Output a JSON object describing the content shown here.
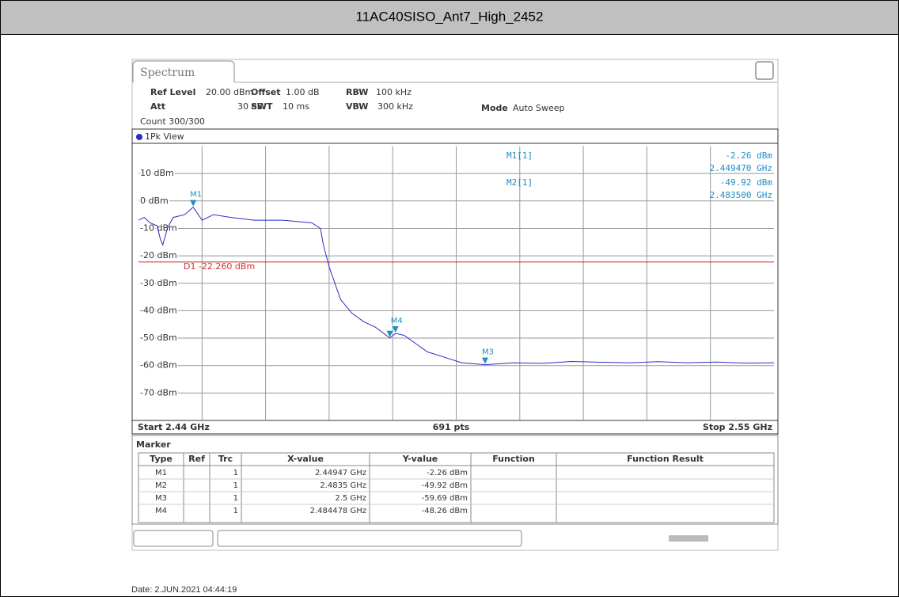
{
  "header": {
    "title": "11AC40SISO_Ant7_High_2452"
  },
  "tab": "Spectrum",
  "settings": [
    {
      "name": "Ref Level",
      "value": "20.00 dBm"
    },
    {
      "name": "Offset",
      "value": "1.00 dB"
    },
    {
      "name": "RBW",
      "value": "100 kHz"
    },
    {
      "name": "Att",
      "value": "30 dB"
    },
    {
      "name": "SWT",
      "value": "10 ms"
    },
    {
      "name": "VBW",
      "value": "300 kHz"
    },
    {
      "name": "Mode",
      "value": "Auto Sweep"
    }
  ],
  "count": "Count 300/300",
  "view": "1Pk View",
  "chart_data": {
    "type": "line",
    "xlim": [
      2.44,
      2.55
    ],
    "ylim": [
      -80,
      20
    ],
    "yticks": [
      {
        "value": 10,
        "label": "10 dBm"
      },
      {
        "value": 0,
        "label": "0 dBm"
      },
      {
        "value": -10,
        "label": "-10 dBm"
      },
      {
        "value": -20,
        "label": "-20 dBm"
      },
      {
        "value": -30,
        "label": "-30 dBm"
      },
      {
        "value": -40,
        "label": "-40 dBm"
      },
      {
        "value": -50,
        "label": "-50 dBm"
      },
      {
        "value": -60,
        "label": "-60 dBm"
      },
      {
        "value": -70,
        "label": "-70 dBm"
      }
    ],
    "grid": true,
    "series": [
      {
        "name": "1Pk",
        "color": "#2b2bc8",
        "x": [
          2.44,
          2.441,
          2.442,
          2.4432,
          2.4438,
          2.4442,
          2.445,
          2.446,
          2.448,
          2.44947,
          2.451,
          2.453,
          2.456,
          2.46,
          2.465,
          2.47,
          2.4715,
          2.472,
          2.473,
          2.474,
          2.475,
          2.477,
          2.479,
          2.481,
          2.4835,
          2.4845,
          2.486,
          2.488,
          2.49,
          2.493,
          2.496,
          2.5,
          2.505,
          2.51,
          2.515,
          2.52,
          2.525,
          2.53,
          2.535,
          2.54,
          2.545,
          2.55
        ],
        "values": [
          -7,
          -6,
          -8,
          -9,
          -14,
          -16,
          -10,
          -6,
          -5,
          -2.26,
          -7,
          -5,
          -6,
          -7,
          -7,
          -8,
          -10,
          -16,
          -24,
          -30,
          -36,
          -41,
          -44,
          -46,
          -49.92,
          -48.26,
          -49,
          -52,
          -55,
          -57,
          -59,
          -59.69,
          -59,
          -59.2,
          -58.5,
          -58.8,
          -59,
          -58.6,
          -59,
          -58.7,
          -59.1,
          -59
        ]
      }
    ],
    "display_line": {
      "label": "D1 -22.260 dBm",
      "value": -22.26,
      "color": "#d03030"
    },
    "markers": [
      {
        "label": "M1",
        "x": 2.44947,
        "y": -2.26
      },
      {
        "label": "M2",
        "x": 2.4835,
        "y": -49.92
      },
      {
        "label": "M3",
        "x": 2.5,
        "y": -59.69
      },
      {
        "label": "M4",
        "x": 2.484478,
        "y": -48.26
      }
    ],
    "readout": [
      {
        "name": "M1[1]",
        "y": "-2.26 dBm",
        "x": "2.449470 GHz"
      },
      {
        "name": "M2[1]",
        "y": "-49.92 dBm",
        "x": "2.483500 GHz"
      }
    ],
    "start": "Start 2.44 GHz",
    "points": "691 pts",
    "stop": "Stop 2.55 GHz"
  },
  "table": {
    "title": "Marker",
    "columns": [
      "Type",
      "Ref",
      "Trc",
      "X-value",
      "Y-value",
      "Function",
      "Function Result"
    ],
    "rows": [
      [
        "M1",
        "",
        "1",
        "2.44947 GHz",
        "-2.26 dBm",
        "",
        ""
      ],
      [
        "M2",
        "",
        "1",
        "2.4835 GHz",
        "-49.92 dBm",
        "",
        ""
      ],
      [
        "M3",
        "",
        "1",
        "2.5 GHz",
        "-59.69 dBm",
        "",
        ""
      ],
      [
        "M4",
        "",
        "1",
        "2.484478 GHz",
        "-48.26 dBm",
        "",
        ""
      ]
    ]
  },
  "date": "Date: 2.JUN.2021  04:44:19"
}
